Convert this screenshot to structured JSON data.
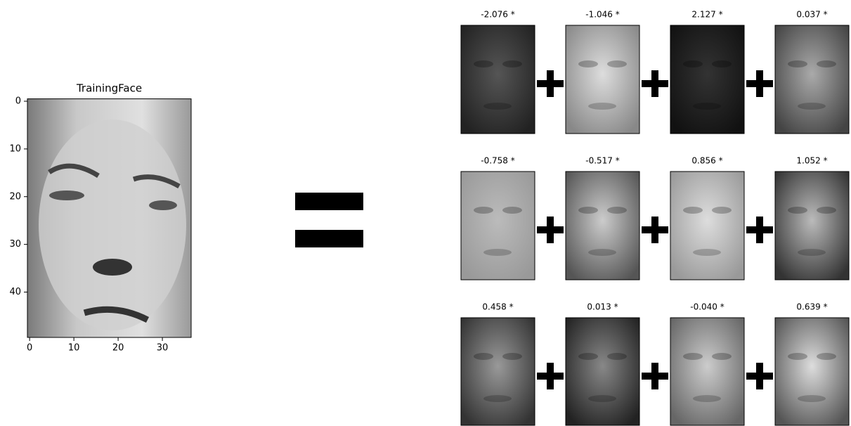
{
  "training_face": {
    "title": "TrainingFace",
    "xlim": [
      -0.5,
      36.5
    ],
    "ylim": [
      49.5,
      -0.5
    ],
    "xticks": [
      0,
      10,
      20,
      30
    ],
    "yticks": [
      0,
      10,
      20,
      30,
      40
    ]
  },
  "components": [
    {
      "label": "-2.076 *"
    },
    {
      "label": "-1.046 *"
    },
    {
      "label": "2.127 *"
    },
    {
      "label": "0.037 *"
    },
    {
      "label": "-0.758 *"
    },
    {
      "label": "-0.517 *"
    },
    {
      "label": "0.856 *"
    },
    {
      "label": "1.052 *"
    },
    {
      "label": "0.458 *"
    },
    {
      "label": "0.013 *"
    },
    {
      "label": "-0.040 *"
    },
    {
      "label": "0.639 *"
    }
  ]
}
